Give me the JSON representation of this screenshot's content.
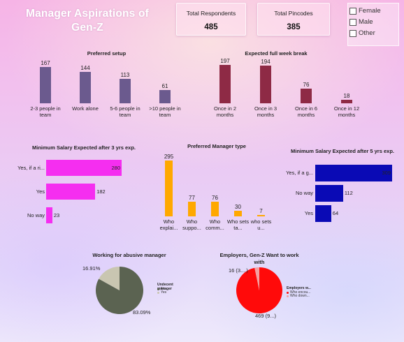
{
  "header": {
    "title": "Manager Aspirations of Gen-Z"
  },
  "cards": [
    {
      "label": "Total Respondents",
      "value": "485"
    },
    {
      "label": "Total Pincodes",
      "value": "385"
    }
  ],
  "gender_slicer": {
    "options": [
      "Female",
      "Male",
      "Other"
    ]
  },
  "chart_data": [
    {
      "id": "preferred_setup",
      "type": "bar",
      "title": "Preferred setup",
      "categories": [
        "2-3 people in team",
        "Work alone",
        "5-6 people in team",
        ">10 people in team"
      ],
      "values": [
        167,
        144,
        113,
        61
      ],
      "color": "#6b5a8e"
    },
    {
      "id": "full_week_break",
      "type": "bar",
      "title": "Expected full week break",
      "categories": [
        "Once in 2 months",
        "Once in 3 months",
        "Once in 6 months",
        "Once in 12 months"
      ],
      "values": [
        197,
        194,
        76,
        18
      ],
      "color": "#8e2a45"
    },
    {
      "id": "min_salary_3yrs",
      "type": "bar",
      "orientation": "horizontal",
      "title": "Minimum Salary Expected after 3 yrs exp.",
      "categories": [
        "Yes, if a ri...",
        "Yes",
        "No way"
      ],
      "values": [
        280,
        182,
        23
      ],
      "color": "#f52ef0"
    },
    {
      "id": "preferred_manager_type",
      "type": "bar",
      "title": "Preferred Manager type",
      "categories": [
        "Who explai...",
        "Who suppo...",
        "Who comm...",
        "Who sets ta...",
        "who sets u..."
      ],
      "values": [
        295,
        77,
        76,
        30,
        7
      ],
      "color": "#ffa800"
    },
    {
      "id": "min_salary_5yrs",
      "type": "bar",
      "orientation": "horizontal",
      "title": "Minimum Salary Expected after 5 yrs exp.",
      "categories": [
        "Yes, if a g...",
        "No way",
        "Yes"
      ],
      "values": [
        309,
        112,
        64
      ],
      "color": "#0a0ab5"
    },
    {
      "id": "abusive_manager",
      "type": "pie",
      "title": "Working for abusive manager",
      "legend_title": "Undecent manager",
      "slices": [
        {
          "name": "No",
          "value": 83.09,
          "label": "83.09%",
          "color": "#5b6351"
        },
        {
          "name": "Yes",
          "value": 16.91,
          "label": "16.91%",
          "color": "#c9c6b1"
        }
      ]
    },
    {
      "id": "employers_genz",
      "type": "pie",
      "title": "Employers, Gen-Z Want to work with",
      "legend_title": "Employers w...",
      "slices": [
        {
          "name": "Who encou...",
          "value": 469,
          "label": "469 (9...)",
          "color": "#ff0a0a"
        },
        {
          "name": "Who down...",
          "value": 16,
          "label": "16 (3....)",
          "color": "#f4a0a0"
        }
      ]
    }
  ]
}
